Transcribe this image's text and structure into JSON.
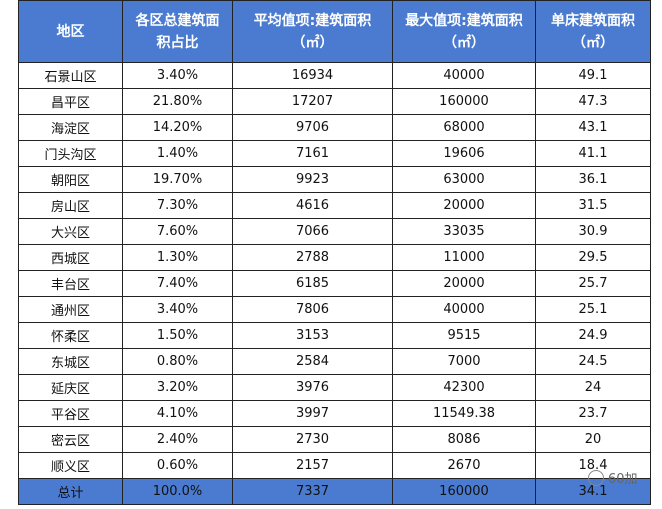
{
  "table": {
    "header": [
      [
        "地区"
      ],
      [
        "各区总建筑面",
        "积占比"
      ],
      [
        "平均值项:建筑面积",
        "（㎡）"
      ],
      [
        "最大值项:建筑面积",
        "（㎡）"
      ],
      [
        "单床建筑面积",
        "（㎡）"
      ]
    ],
    "rows": [
      [
        "石景山区",
        "3.40%",
        "16934",
        "40000",
        "49.1"
      ],
      [
        "昌平区",
        "21.80%",
        "17207",
        "160000",
        "47.3"
      ],
      [
        "海淀区",
        "14.20%",
        "9706",
        "68000",
        "43.1"
      ],
      [
        "门头沟区",
        "1.40%",
        "7161",
        "19606",
        "41.1"
      ],
      [
        "朝阳区",
        "19.70%",
        "9923",
        "63000",
        "36.1"
      ],
      [
        "房山区",
        "7.30%",
        "4616",
        "20000",
        "31.5"
      ],
      [
        "大兴区",
        "7.60%",
        "7066",
        "33035",
        "30.9"
      ],
      [
        "西城区",
        "1.30%",
        "2788",
        "11000",
        "29.5"
      ],
      [
        "丰台区",
        "7.40%",
        "6185",
        "20000",
        "25.7"
      ],
      [
        "通州区",
        "3.40%",
        "7806",
        "40000",
        "25.1"
      ],
      [
        "怀柔区",
        "1.50%",
        "3153",
        "9515",
        "24.9"
      ],
      [
        "东城区",
        "0.80%",
        "2584",
        "7000",
        "24.5"
      ],
      [
        "延庆区",
        "3.20%",
        "3976",
        "42300",
        "24"
      ],
      [
        "平谷区",
        "4.10%",
        "3997",
        "11549.38",
        "23.7"
      ],
      [
        "密云区",
        "2.40%",
        "2730",
        "8086",
        "20"
      ],
      [
        "顺义区",
        "0.60%",
        "2157",
        "2670",
        "18.4"
      ]
    ],
    "total": [
      "总计",
      "100.0%",
      "7337",
      "160000",
      "34.1"
    ]
  },
  "watermark": "60加"
}
